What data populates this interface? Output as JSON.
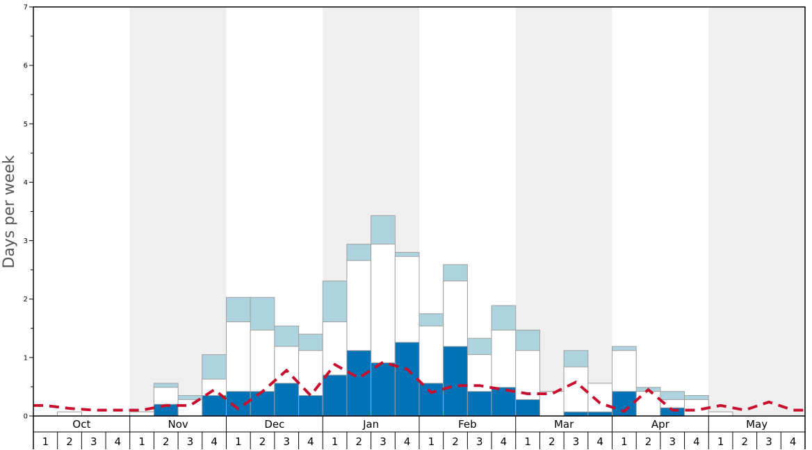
{
  "chart_data": {
    "type": "bar",
    "ylabel": "Days per week",
    "ylim": [
      0,
      7
    ],
    "yticks": [
      "0",
      "1",
      "2",
      "3",
      "4",
      "5",
      "6",
      "7"
    ],
    "months": [
      "Oct",
      "Nov",
      "Dec",
      "Jan",
      "Feb",
      "Mar",
      "Apr",
      "May"
    ],
    "weeks": [
      "1",
      "2",
      "3",
      "4"
    ],
    "colors": {
      "dark": "#0072b5",
      "white": "#ffffff",
      "light": "#add3df",
      "line": "#c8102e",
      "band": "#efefef",
      "border": "#a0a0a0"
    },
    "series": [
      {
        "values": [
          0,
          0,
          0,
          0,
          0,
          0.2,
          0,
          0.35,
          0.42,
          0.42,
          0.56,
          0.35,
          0.7,
          1.12,
          0.91,
          1.26,
          0.56,
          1.19,
          0.42,
          0.49,
          0.28,
          0,
          0.07,
          0.07,
          0.42,
          0,
          0.14,
          0,
          0,
          0,
          0,
          0
        ]
      },
      {
        "values": [
          0,
          0.07,
          0,
          0,
          0.07,
          0.49,
          0.28,
          0.63,
          1.61,
          1.47,
          1.19,
          1.12,
          1.61,
          2.66,
          2.94,
          2.73,
          1.54,
          2.31,
          1.05,
          1.47,
          1.12,
          0.42,
          0.84,
          0.56,
          1.12,
          0.42,
          0.28,
          0.28,
          0.07,
          0,
          0,
          0
        ]
      },
      {
        "values": [
          0,
          0.07,
          0,
          0,
          0.07,
          0.56,
          0.35,
          1.05,
          2.03,
          2.03,
          1.54,
          1.4,
          2.31,
          2.94,
          3.43,
          2.8,
          1.75,
          2.59,
          1.33,
          1.89,
          1.47,
          0.42,
          1.12,
          0.56,
          1.19,
          0.49,
          0.42,
          0.35,
          0.07,
          0,
          0,
          0
        ]
      },
      {
        "values": [
          0.18,
          0.13,
          0.1,
          0.1,
          0.1,
          0.18,
          0.18,
          0.45,
          0.12,
          0.42,
          0.78,
          0.35,
          0.88,
          0.65,
          0.92,
          0.8,
          0.4,
          0.52,
          0.52,
          0.45,
          0.38,
          0.38,
          0.58,
          0.22,
          0.08,
          0.45,
          0.1,
          0.1,
          0.18,
          0.1,
          0.24,
          0.1
        ]
      }
    ]
  }
}
